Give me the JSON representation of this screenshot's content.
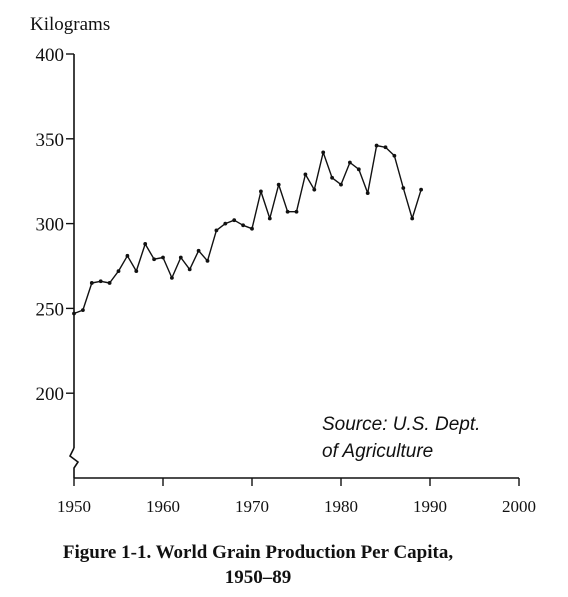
{
  "chart_data": {
    "type": "line",
    "ylabel": "Kilograms",
    "caption_line1": "Figure 1-1. World Grain Production Per Capita,",
    "caption_line2": "1950–89",
    "annotation_line1": "Source: U.S. Dept.",
    "annotation_line2": "of Agriculture",
    "xlim": [
      1950,
      2000
    ],
    "ylim": [
      150,
      400
    ],
    "x_ticks": [
      1950,
      1960,
      1970,
      1980,
      1990,
      2000
    ],
    "y_ticks": [
      200,
      250,
      300,
      350,
      400
    ],
    "axis_break": true,
    "grid": false,
    "series": [
      {
        "x": [
          1950,
          1951,
          1952,
          1953,
          1954,
          1955,
          1956,
          1957,
          1958,
          1959,
          1960,
          1961,
          1962,
          1963,
          1964,
          1965,
          1966,
          1967,
          1968,
          1969,
          1970,
          1971,
          1972,
          1973,
          1974,
          1975,
          1976,
          1977,
          1978,
          1979,
          1980,
          1981,
          1982,
          1983,
          1984,
          1985,
          1986,
          1987,
          1988,
          1989
        ],
        "values": [
          247,
          249,
          265,
          266,
          265,
          272,
          281,
          272,
          288,
          279,
          280,
          268,
          280,
          273,
          284,
          278,
          296,
          300,
          302,
          299,
          297,
          319,
          303,
          323,
          307,
          307,
          329,
          320,
          342,
          327,
          323,
          336,
          332,
          318,
          346,
          345,
          340,
          321,
          303,
          320
        ]
      }
    ]
  }
}
